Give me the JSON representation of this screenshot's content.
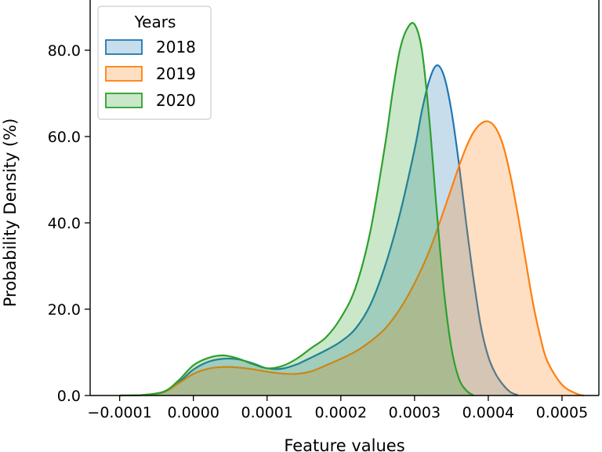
{
  "chart_data": {
    "type": "area",
    "title": "",
    "xlabel": "Feature values",
    "ylabel": "Probability Density (%)",
    "xlim": [
      -0.00014,
      0.00055
    ],
    "ylim": [
      0,
      92
    ],
    "x_ticks": [
      -0.0001,
      0.0,
      0.0001,
      0.0002,
      0.0003,
      0.0004,
      0.0005
    ],
    "x_tick_labels": [
      "−0.0001",
      "0.0000",
      "0.0001",
      "0.0002",
      "0.0003",
      "0.0004",
      "0.0005"
    ],
    "y_ticks": [
      0,
      20,
      40,
      60,
      80
    ],
    "y_tick_labels": [
      "0.0",
      "20.0",
      "40.0",
      "60.0",
      "80.0"
    ],
    "grid": false,
    "legend": {
      "title": "Years",
      "position": "top-left"
    },
    "series": [
      {
        "name": "2018",
        "color": "#1f77b4",
        "x": [
          -0.0001,
          -7e-05,
          -4e-05,
          -2e-05,
          0.0,
          2e-05,
          4e-05,
          6e-05,
          8e-05,
          0.0001,
          0.00012,
          0.00014,
          0.00016,
          0.00018,
          0.0002,
          0.00022,
          0.00024,
          0.00026,
          0.00028,
          0.0003,
          0.00031,
          0.00032,
          0.00033,
          0.00034,
          0.00035,
          0.00036,
          0.00037,
          0.00038,
          0.00039,
          0.0004,
          0.00041,
          0.00042,
          0.00043,
          0.00044
        ],
        "y": [
          0,
          0.1,
          0.8,
          3,
          6,
          7.8,
          8.5,
          8.4,
          7.5,
          6.3,
          6.2,
          7.2,
          8.8,
          10.5,
          12.5,
          15.5,
          21,
          30,
          42,
          57,
          66,
          73,
          76.5,
          74,
          66,
          54,
          40,
          27,
          16,
          9,
          5,
          2.5,
          0.8,
          0.1
        ]
      },
      {
        "name": "2019",
        "color": "#ff7f0e",
        "x": [
          -0.0001,
          -7e-05,
          -4e-05,
          -2e-05,
          0.0,
          2e-05,
          4e-05,
          6e-05,
          8e-05,
          0.0001,
          0.00012,
          0.00014,
          0.00016,
          0.00018,
          0.0002,
          0.00022,
          0.00024,
          0.00026,
          0.00028,
          0.0003,
          0.00032,
          0.00034,
          0.00036,
          0.00037,
          0.00038,
          0.00039,
          0.0004,
          0.00041,
          0.00042,
          0.00043,
          0.00044,
          0.00045,
          0.00046,
          0.00047,
          0.00048,
          0.0005,
          0.00052,
          0.00053
        ],
        "y": [
          0,
          0.1,
          0.8,
          2.8,
          5,
          6.2,
          6.6,
          6.5,
          6.1,
          5.5,
          5.1,
          5.0,
          5.6,
          7.0,
          8.5,
          10.2,
          12.5,
          15.5,
          20,
          26,
          33.5,
          43,
          53,
          57.5,
          61,
          63,
          63.5,
          62,
          58,
          51,
          42,
          32,
          22,
          14,
          8,
          2.5,
          0.4,
          0
        ]
      },
      {
        "name": "2020",
        "color": "#2ca02c",
        "x": [
          -0.0001,
          -7e-05,
          -4e-05,
          -2e-05,
          0.0,
          2e-05,
          4e-05,
          6e-05,
          8e-05,
          0.0001,
          0.00012,
          0.00014,
          0.00016,
          0.00018,
          0.0002,
          0.00022,
          0.00024,
          0.00026,
          0.00027,
          0.00028,
          0.00029,
          0.0003,
          0.00031,
          0.00032,
          0.00033,
          0.00034,
          0.00035,
          0.00036,
          0.00037,
          0.00038
        ],
        "y": [
          0,
          0.1,
          0.9,
          3.5,
          7,
          8.7,
          9.3,
          8.6,
          7.3,
          6.3,
          6.8,
          8.5,
          11,
          13.5,
          18,
          25,
          38,
          58,
          70,
          80,
          85,
          86,
          80,
          64,
          43,
          24,
          11,
          4,
          1.2,
          0
        ]
      }
    ]
  }
}
